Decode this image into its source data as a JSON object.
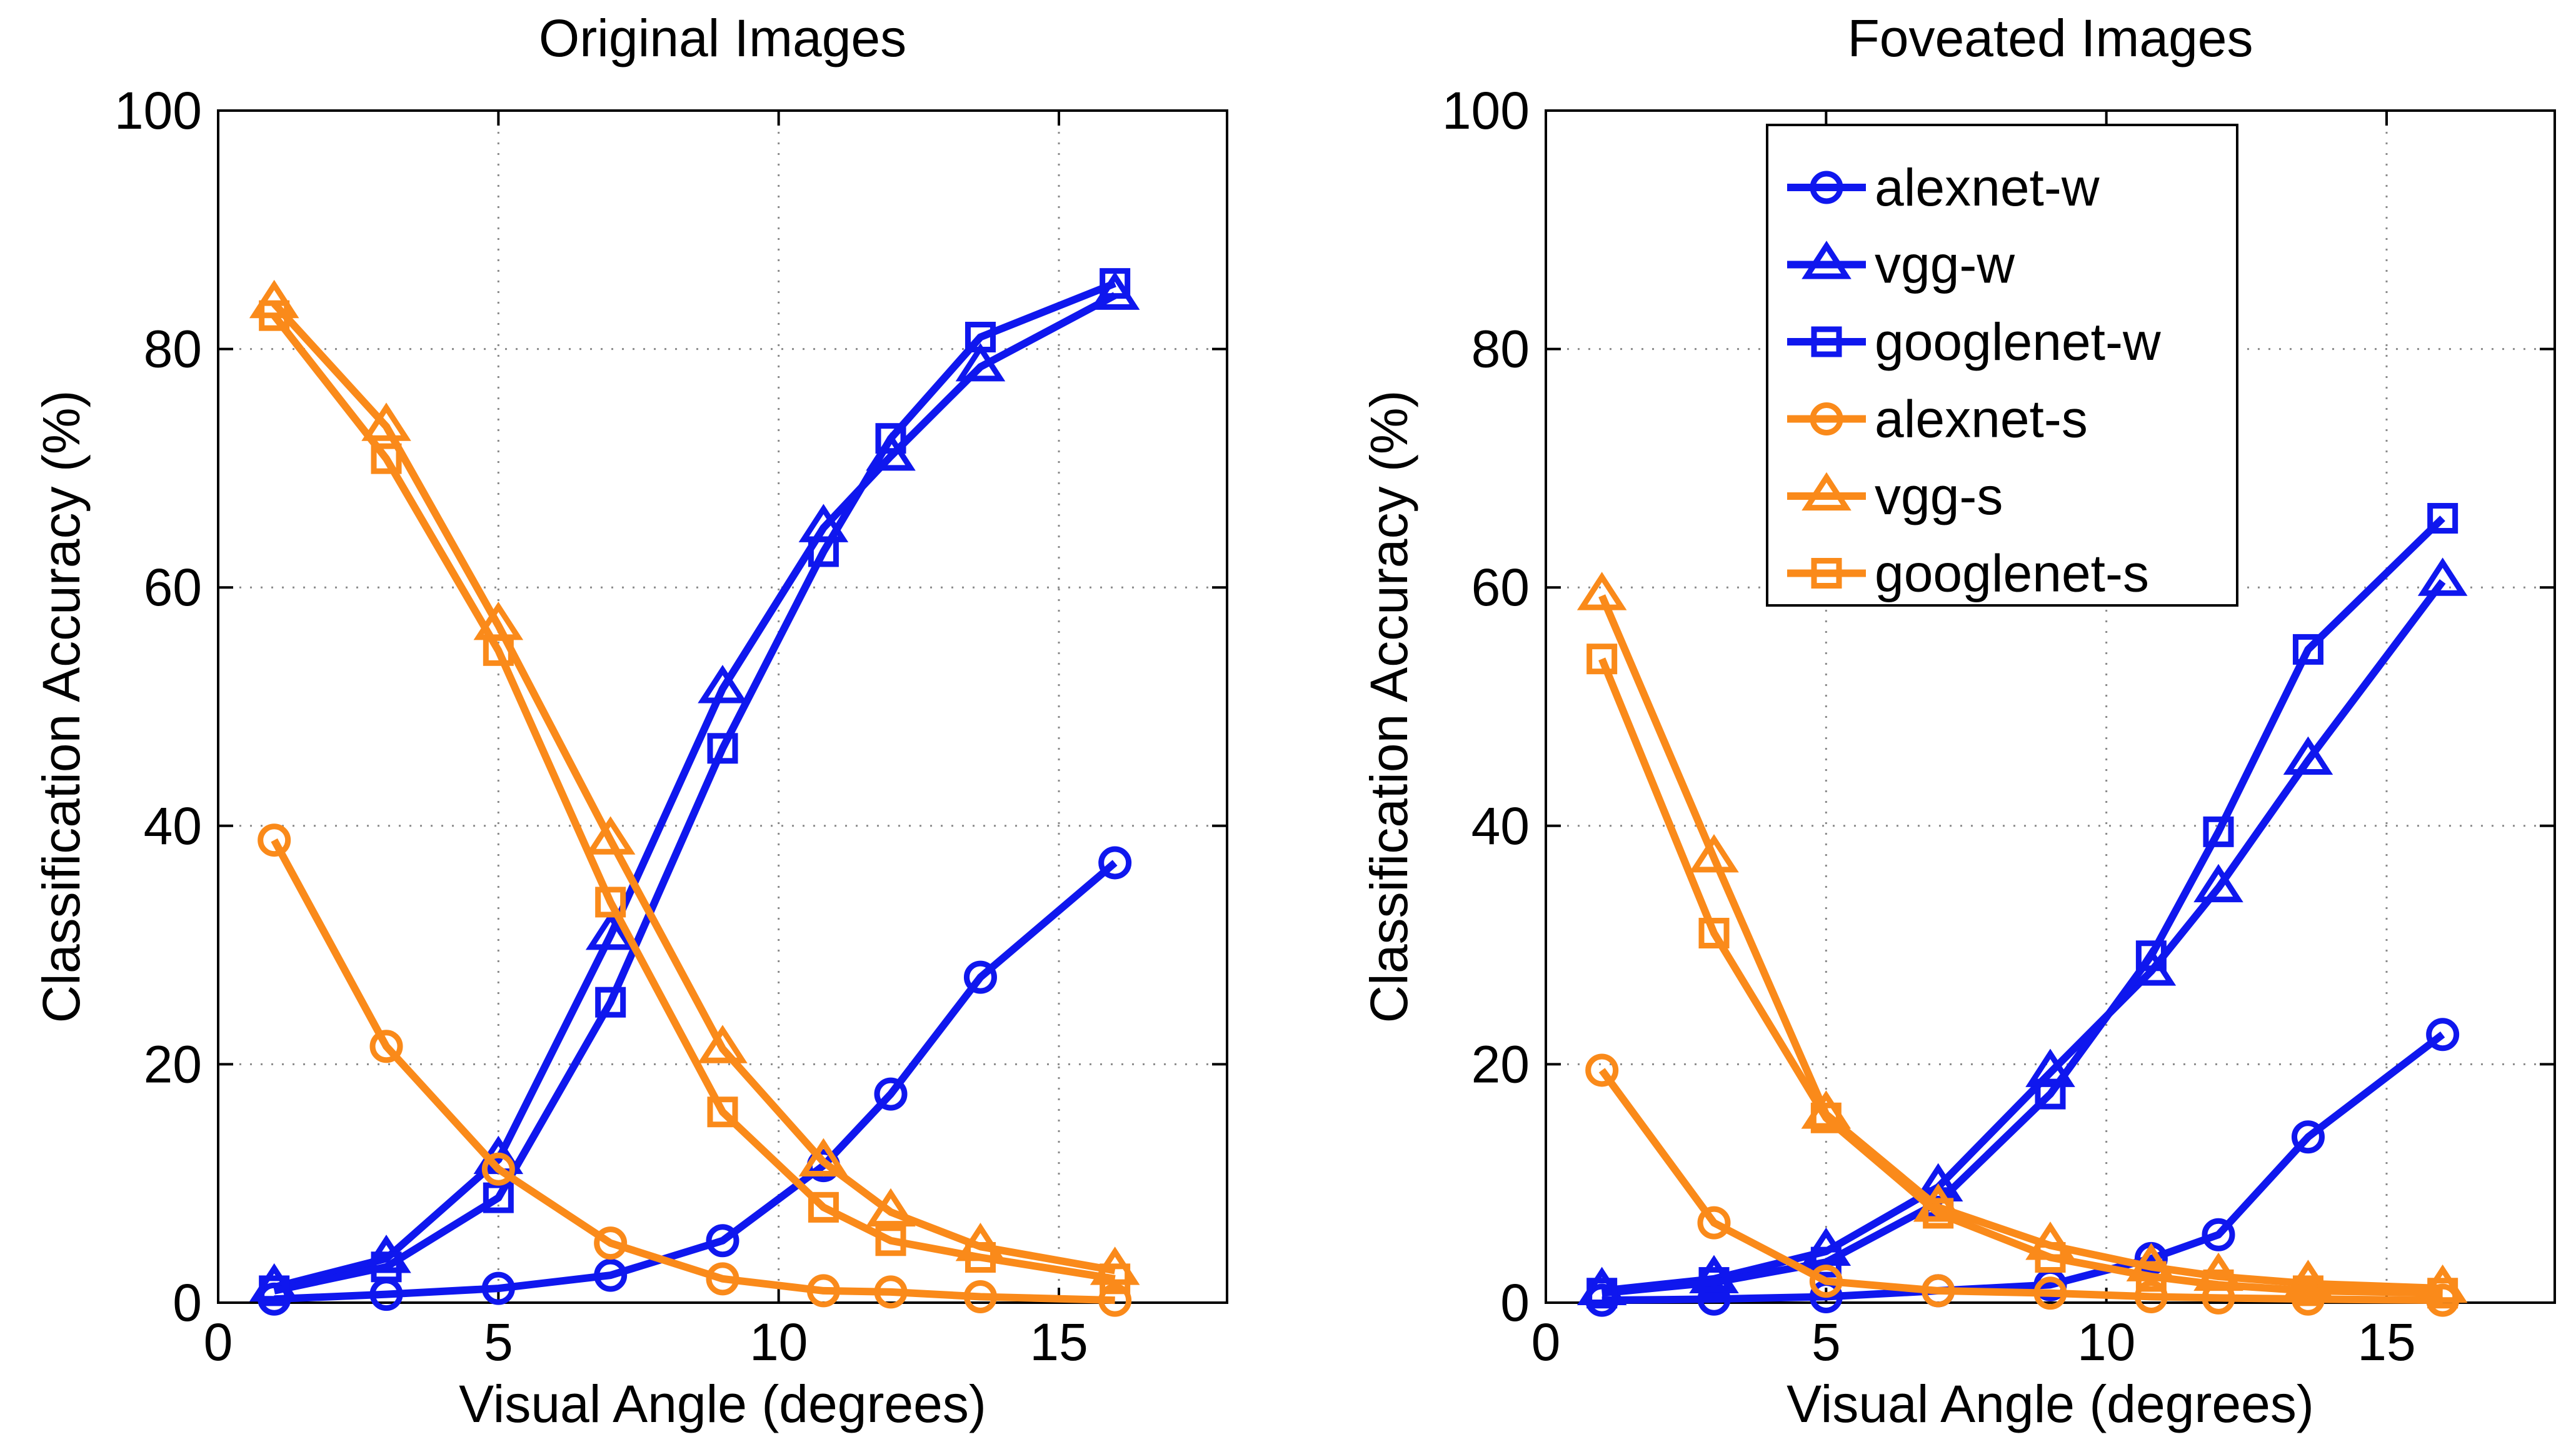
{
  "colors": {
    "blue": "#0f17ee",
    "orange": "#fa8a1a"
  },
  "chart_data": [
    {
      "type": "line",
      "title": "Original Images",
      "xlabel": "Visual Angle (degrees)",
      "ylabel": "Classification Accuracy (%)",
      "xlim": [
        0,
        18
      ],
      "ylim": [
        0,
        100
      ],
      "xticks": [
        0,
        5,
        10,
        15
      ],
      "yticks": [
        0,
        20,
        40,
        60,
        80,
        100
      ],
      "grid": true,
      "legend": null,
      "x": [
        1,
        3,
        5,
        7,
        9,
        10.8,
        12,
        13.6,
        16
      ],
      "series": [
        {
          "name": "alexnet-w",
          "color": "blue",
          "marker": "circle",
          "values": [
            0.3,
            0.7,
            1.2,
            2.3,
            5.2,
            11.5,
            17.5,
            27.3,
            36.9
          ]
        },
        {
          "name": "vgg-w",
          "color": "blue",
          "marker": "triangle",
          "values": [
            1.3,
            3.7,
            12.0,
            30.8,
            51.5,
            65.0,
            71.0,
            78.5,
            84.5
          ]
        },
        {
          "name": "googlenet-w",
          "color": "blue",
          "marker": "square",
          "values": [
            1.0,
            3.0,
            8.8,
            25.2,
            46.5,
            63.0,
            72.5,
            81.0,
            85.5
          ]
        },
        {
          "name": "alexnet-s",
          "color": "orange",
          "marker": "circle",
          "values": [
            38.8,
            21.5,
            11.2,
            5.0,
            2.0,
            1.0,
            0.9,
            0.5,
            0.2
          ]
        },
        {
          "name": "vgg-s",
          "color": "orange",
          "marker": "triangle",
          "values": [
            83.8,
            73.5,
            56.8,
            38.8,
            21.3,
            11.8,
            7.6,
            4.7,
            2.7
          ]
        },
        {
          "name": "googlenet-s",
          "color": "orange",
          "marker": "square",
          "values": [
            82.8,
            70.8,
            54.7,
            33.6,
            16.0,
            8.0,
            5.2,
            3.8,
            2.0
          ]
        }
      ]
    },
    {
      "type": "line",
      "title": "Foveated Images",
      "xlabel": "Visual Angle (degrees)",
      "ylabel": "Classification Accuracy (%)",
      "xlim": [
        0,
        18
      ],
      "ylim": [
        0,
        100
      ],
      "xticks": [
        0,
        5,
        10,
        15
      ],
      "yticks": [
        0,
        20,
        40,
        60,
        80,
        100
      ],
      "grid": true,
      "legend": "top-center",
      "x": [
        1,
        3,
        5,
        7,
        9,
        10.8,
        12,
        13.6,
        16
      ],
      "series": [
        {
          "name": "alexnet-w",
          "color": "blue",
          "marker": "circle",
          "values": [
            0.2,
            0.3,
            0.5,
            1.0,
            1.5,
            3.7,
            5.7,
            13.9,
            22.5
          ]
        },
        {
          "name": "vgg-w",
          "color": "blue",
          "marker": "triangle",
          "values": [
            1.0,
            2.0,
            4.3,
            9.7,
            19.3,
            27.8,
            34.8,
            45.5,
            60.5
          ]
        },
        {
          "name": "googlenet-w",
          "color": "blue",
          "marker": "square",
          "values": [
            0.8,
            1.7,
            3.4,
            8.4,
            17.5,
            29.1,
            39.5,
            54.8,
            65.8
          ]
        },
        {
          "name": "alexnet-s",
          "color": "orange",
          "marker": "circle",
          "values": [
            19.5,
            6.7,
            1.8,
            1.0,
            0.8,
            0.5,
            0.4,
            0.3,
            0.2
          ]
        },
        {
          "name": "vgg-s",
          "color": "orange",
          "marker": "triangle",
          "values": [
            59.3,
            37.3,
            15.8,
            8.0,
            4.8,
            3.0,
            2.2,
            1.6,
            1.2
          ]
        },
        {
          "name": "googlenet-s",
          "color": "orange",
          "marker": "square",
          "values": [
            54.0,
            31.0,
            15.5,
            7.5,
            3.8,
            2.2,
            1.5,
            1.0,
            0.8
          ]
        }
      ]
    }
  ]
}
